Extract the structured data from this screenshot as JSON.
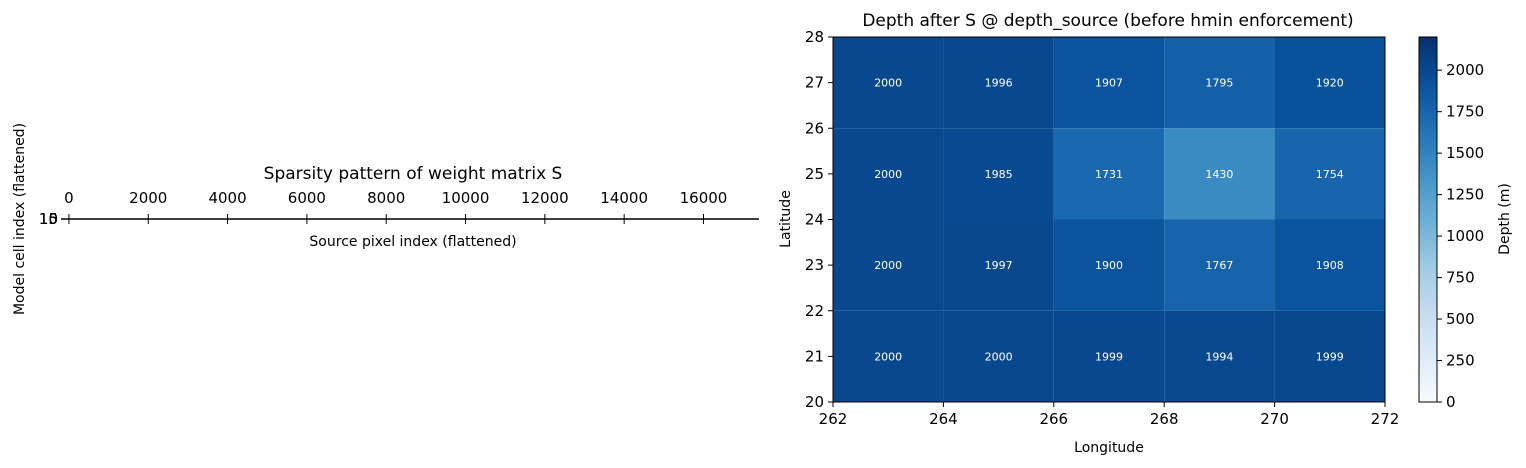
{
  "chart_data": [
    {
      "type": "scatter",
      "title": "Sparsity pattern of weight matrix S",
      "xlabel": "Source pixel index (flattened)",
      "ylabel": "Model cell index (flattened)",
      "x_ticks": [
        "0",
        "2000",
        "4000",
        "6000",
        "8000",
        "10000",
        "12000",
        "14000",
        "16000"
      ],
      "x_tick_values": [
        0,
        2000,
        4000,
        6000,
        8000,
        10000,
        12000,
        14000,
        16000
      ],
      "xlim": [
        -200,
        17400
      ],
      "y_ticks": [
        "15",
        "10",
        "5",
        "0"
      ],
      "x_axis_position": "top",
      "grid": false
    },
    {
      "type": "heatmap",
      "title": "Depth after S @ depth_source (before hmin enforcement)",
      "xlabel": "Longitude",
      "ylabel": "Latitude",
      "x_ticks": [
        "262",
        "264",
        "266",
        "268",
        "270",
        "272"
      ],
      "y_ticks": [
        "20",
        "21",
        "22",
        "23",
        "24",
        "25",
        "26",
        "27",
        "28"
      ],
      "xlim": [
        262,
        272
      ],
      "ylim": [
        20,
        28
      ],
      "x_edges": [
        262,
        264,
        266,
        268,
        270,
        272
      ],
      "y_edges": [
        20,
        22,
        24,
        26,
        28
      ],
      "rows_top_to_bottom": [
        {
          "y_center": 27,
          "values": [
            2000,
            1996,
            1907,
            1795,
            1920
          ]
        },
        {
          "y_center": 25,
          "values": [
            2000,
            1985,
            1731,
            1430,
            1754
          ]
        },
        {
          "y_center": 23,
          "values": [
            2000,
            1997,
            1900,
            1767,
            1908
          ]
        },
        {
          "y_center": 21,
          "values": [
            2000,
            2000,
            1999,
            1994,
            1999
          ]
        }
      ],
      "cell_labels_top_to_bottom": [
        [
          "2000",
          "1996",
          "1907",
          "1795",
          "1920"
        ],
        [
          "2000",
          "1985",
          "1731",
          "1430",
          "1754"
        ],
        [
          "2000",
          "1997",
          "1900",
          "1767",
          "1908"
        ],
        [
          "2000",
          "2000",
          "1999",
          "1994",
          "1999"
        ]
      ],
      "colormap": "Blues",
      "colorbar": {
        "label": "Depth (m)",
        "vmin": 0,
        "vmax": 2200,
        "ticks": [
          "0",
          "250",
          "500",
          "750",
          "1000",
          "1250",
          "1500",
          "1750",
          "2000"
        ],
        "tick_values": [
          0,
          250,
          500,
          750,
          1000,
          1250,
          1500,
          1750,
          2000
        ]
      },
      "grid": false
    }
  ]
}
